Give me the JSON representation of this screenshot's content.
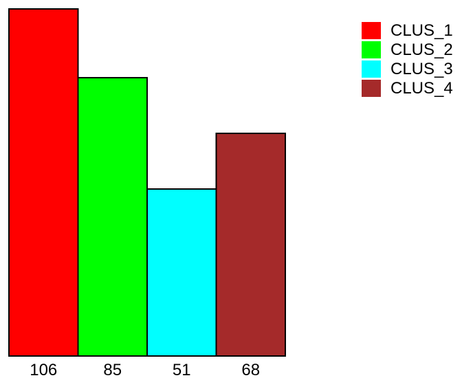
{
  "chart_data": {
    "type": "bar",
    "categories": [
      "106",
      "85",
      "51",
      "68"
    ],
    "values": [
      106,
      85,
      51,
      68
    ],
    "series": [
      {
        "name": "CLUS_1",
        "value": 106,
        "color": "#ff0000"
      },
      {
        "name": "CLUS_2",
        "value": 85,
        "color": "#00ff00"
      },
      {
        "name": "CLUS_3",
        "value": 51,
        "color": "#00ffff"
      },
      {
        "name": "CLUS_4",
        "value": 68,
        "color": "#a52a2a"
      }
    ],
    "ylim": [
      0,
      106
    ],
    "legend_position": "top-right",
    "grid": false
  }
}
